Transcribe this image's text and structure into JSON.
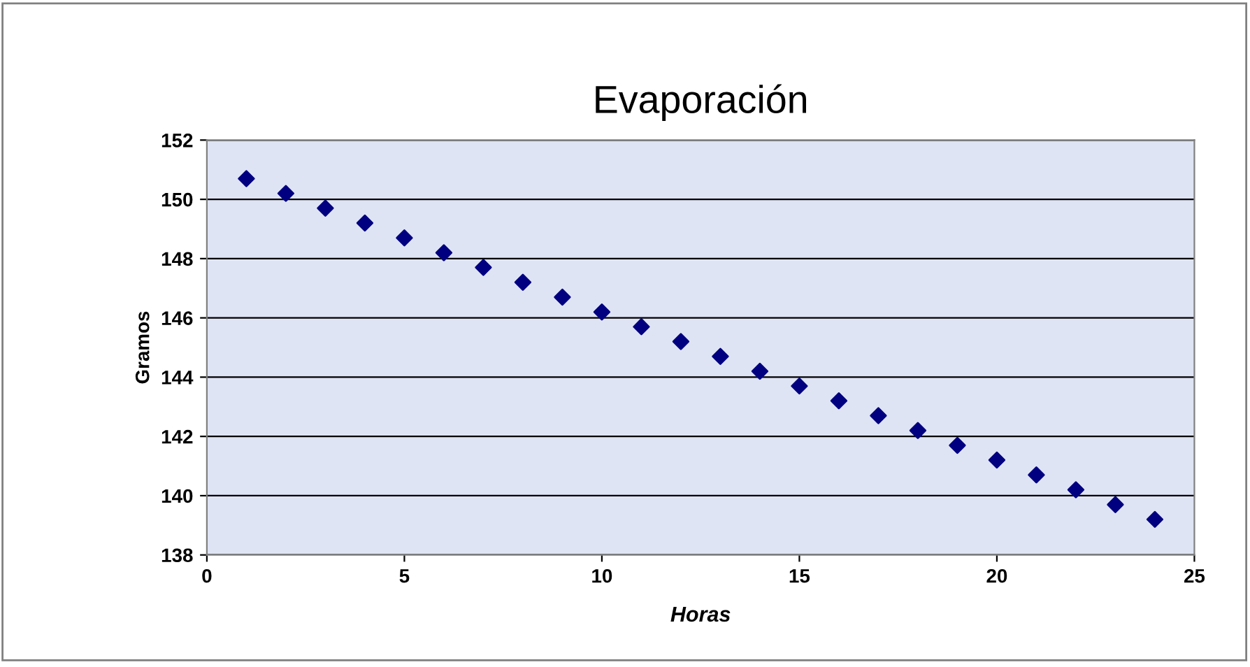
{
  "chart_data": {
    "type": "scatter",
    "title": "Evaporación",
    "xlabel": "Horas",
    "ylabel": "Gramos",
    "x": [
      1,
      2,
      3,
      4,
      5,
      6,
      7,
      8,
      9,
      10,
      11,
      12,
      13,
      14,
      15,
      16,
      17,
      18,
      19,
      20,
      21,
      22,
      23,
      24
    ],
    "series": [
      {
        "color": "#000080",
        "values": [
          150.7,
          150.2,
          149.7,
          149.2,
          148.7,
          148.2,
          147.7,
          147.2,
          146.7,
          146.2,
          145.7,
          145.2,
          144.7,
          144.2,
          143.7,
          143.2,
          142.7,
          142.2,
          141.7,
          141.2,
          140.7,
          140.2,
          139.7,
          139.2
        ]
      }
    ],
    "xlim": [
      0,
      25
    ],
    "xticks": [
      0,
      5,
      10,
      15,
      20,
      25
    ],
    "ylim": [
      138,
      152
    ],
    "yticks": [
      138,
      140,
      142,
      144,
      146,
      148,
      150,
      152
    ],
    "grid": "y",
    "marker": "diamond",
    "legend": false
  }
}
